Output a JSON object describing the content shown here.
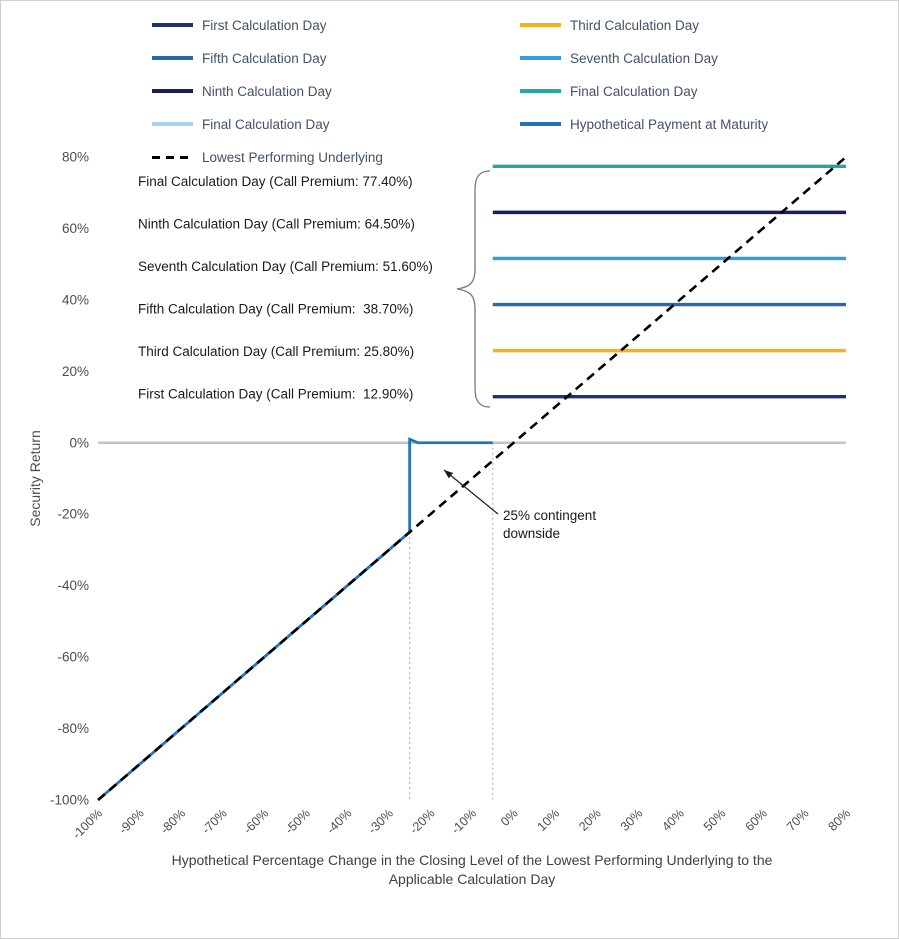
{
  "chart_data": {
    "type": "line",
    "title": "",
    "ylabel": "Security Return",
    "xlabel_lines": [
      "Hypothetical Percentage Change in the Closing Level of the Lowest Performing Underlying to the",
      "Applicable Calculation Day"
    ],
    "xlim": [
      -100,
      80
    ],
    "ylim": [
      -100,
      80
    ],
    "x_tick_labels": [
      "-100%",
      "-90%",
      "-80%",
      "-70%",
      "-60%",
      "-50%",
      "-40%",
      "-30%",
      "-20%",
      "-10%",
      "0%",
      "10%",
      "20%",
      "30%",
      "40%",
      "50%",
      "60%",
      "70%",
      "80%"
    ],
    "y_tick_labels": [
      "80%",
      "60%",
      "40%",
      "20%",
      "0%",
      "-20%",
      "-40%",
      "-60%",
      "-80%",
      "-100%"
    ],
    "legend": [
      {
        "label": "First Calculation Day",
        "color": "#1F2F7C",
        "dash": false
      },
      {
        "label": "Third Calculation Day",
        "color": "#F2B321",
        "dash": false
      },
      {
        "label": "Fifth Calculation Day",
        "color": "#2A69A9",
        "dash": false
      },
      {
        "label": "Seventh Calculation Day",
        "color": "#2D9FE0",
        "dash": false
      },
      {
        "label": "Ninth Calculation Day",
        "color": "#191D5B",
        "dash": false
      },
      {
        "label": "Final Calculation Day",
        "color": "#27A5A2",
        "dash": false
      },
      {
        "label": "Final Calculation Day",
        "color": "#A9D3F2",
        "dash": false
      },
      {
        "label": "Hypothetical Payment at Maturity",
        "color": "#2173BF",
        "dash": false
      },
      {
        "label": "Lowest Performing Underlying",
        "color": "#000000",
        "dash": true
      }
    ],
    "call_line_x_start": -5,
    "call_premium_lines": [
      {
        "name": "Final Calculation Day",
        "value": 77.4,
        "color": "#27A5A2",
        "annotation": "Final Calculation Day (Call Premium: 77.40%)"
      },
      {
        "name": "Ninth Calculation Day",
        "value": 64.5,
        "color": "#191D5B",
        "annotation": "Ninth Calculation Day (Call Premium: 64.50%)"
      },
      {
        "name": "Seventh Calculation Day",
        "value": 51.6,
        "color": "#2D9FE0",
        "annotation": "Seventh Calculation Day (Call Premium: 51.60%)"
      },
      {
        "name": "Fifth Calculation Day",
        "value": 38.7,
        "color": "#2A69A9",
        "annotation": "Fifth Calculation Day (Call Premium:  38.70%)"
      },
      {
        "name": "Third Calculation Day",
        "value": 25.8,
        "color": "#F2B321",
        "annotation": "Third Calculation Day (Call Premium: 25.80%)"
      },
      {
        "name": "First Calculation Day",
        "value": 12.9,
        "color": "#1F2F7C",
        "annotation": "First Calculation Day (Call Premium:  12.90%)"
      }
    ],
    "payment_line": {
      "name": "Hypothetical Payment at Maturity",
      "color": "#2173BF",
      "points": [
        [
          -100,
          -100
        ],
        [
          -25,
          -25
        ],
        [
          -25,
          1
        ],
        [
          -23,
          0
        ],
        [
          -5,
          0
        ]
      ]
    },
    "underlying_line": {
      "name": "Lowest Performing Underlying",
      "color": "#000000",
      "dashed": true,
      "points": [
        [
          -100,
          -100
        ],
        [
          80,
          80
        ]
      ]
    },
    "zero_line_y": 0,
    "guide_lines": [
      {
        "x": -25,
        "y_top": -25
      },
      {
        "x": -5,
        "y_top": 0
      }
    ],
    "downside_annotation": {
      "lines": [
        "25% contingent",
        "downside"
      ]
    }
  }
}
